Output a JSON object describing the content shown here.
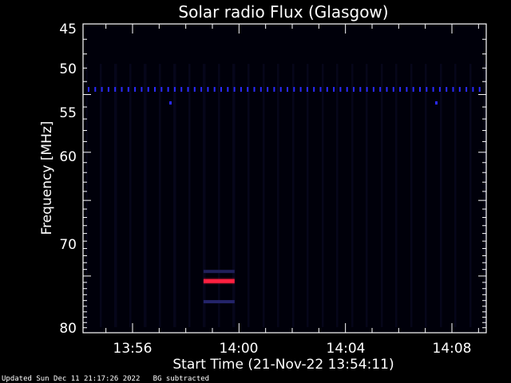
{
  "chart_data": {
    "type": "heatmap",
    "title": "Solar radio Flux (Glasgow)",
    "ylabel": "Frequency [MHz]",
    "xlabel": "Start Time (21-Nov-22 13:54:11)",
    "y_ticks": [
      "45",
      "50",
      "55",
      "60",
      "70",
      "80"
    ],
    "x_ticks": [
      "13:56",
      "14:00",
      "14:04",
      "14:08"
    ],
    "scale": "reciprocal frequency",
    "features": [
      {
        "kind": "burst",
        "frequency_mhz": 70.8,
        "time_start": "13:58:40",
        "time_end": "13:59:50",
        "color": "#ff2040"
      },
      {
        "kind": "faint-band",
        "frequency_mhz": 69.3,
        "time_start": "13:58:40",
        "time_end": "13:59:50",
        "color": "#20205a"
      },
      {
        "kind": "faint-band",
        "frequency_mhz": 74.2,
        "time_start": "13:58:40",
        "time_end": "13:59:50",
        "color": "#24246a"
      },
      {
        "kind": "periodic-markers",
        "frequency_mhz": 49.6,
        "color": "#2a2aff"
      }
    ],
    "colors": {
      "background": "#000000",
      "axes": "#ffffff",
      "markers": "#2a2aff",
      "burst": "#ff2040"
    }
  },
  "footer": {
    "updated": "Updated Sun Dec 11 21:17:26 2022",
    "note": "BG subtracted"
  }
}
